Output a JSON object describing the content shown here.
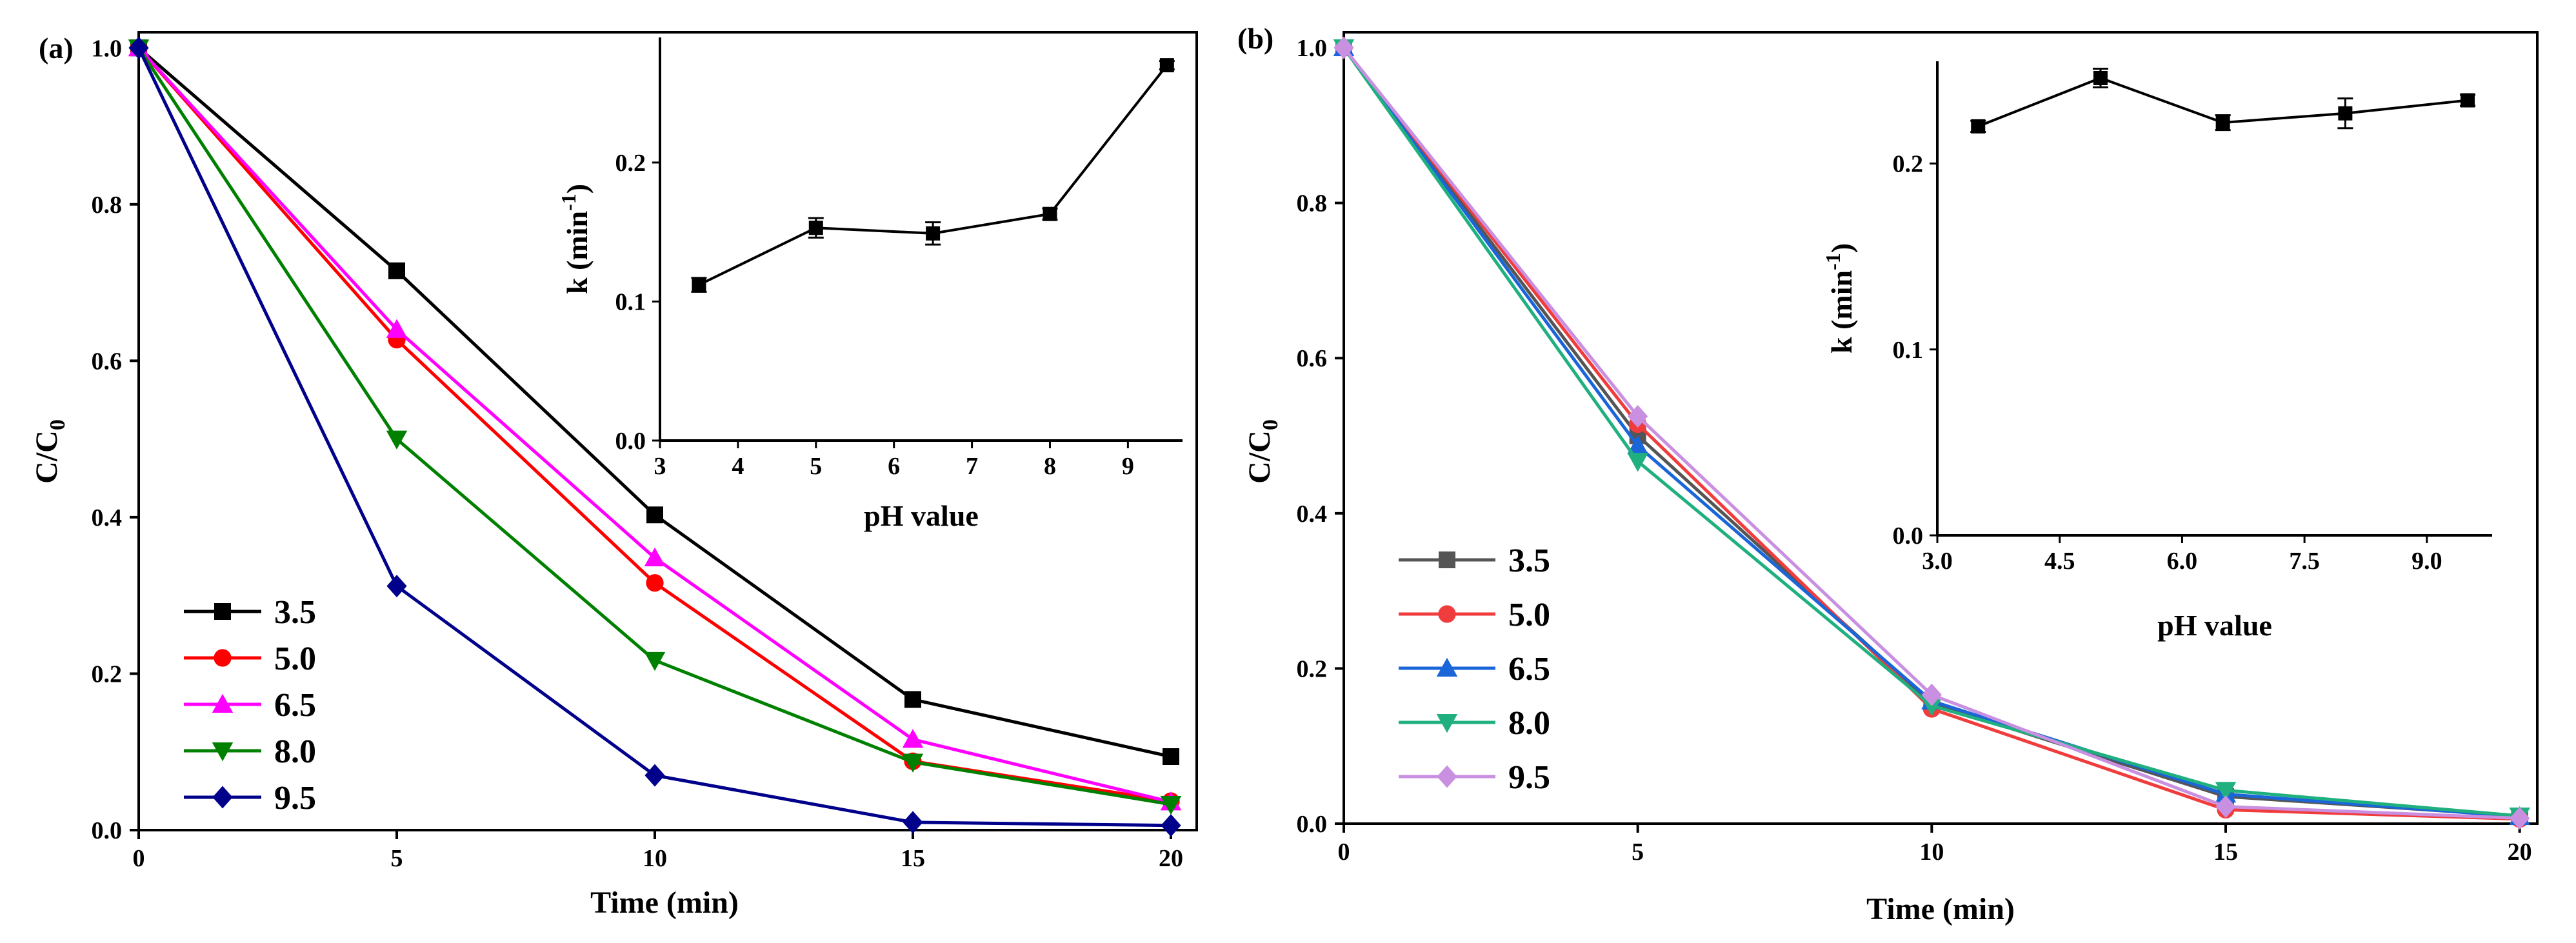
{
  "figure": {
    "chart_data": [
      {
        "id": "a",
        "type": "line",
        "panel_label": "(a)",
        "xlabel": "Time (min)",
        "ylabel_main": "C/C",
        "ylabel_sub": "0",
        "xlim": [
          0,
          20.5
        ],
        "ylim": [
          0,
          1.02
        ],
        "xticks": [
          0,
          5,
          10,
          15,
          20
        ],
        "xtick_labels": [
          "0",
          "5",
          "10",
          "15",
          "20"
        ],
        "yticks": [
          0,
          0.2,
          0.4,
          0.6,
          0.8,
          1.0
        ],
        "ytick_labels": [
          "0.0",
          "0.2",
          "0.4",
          "0.6",
          "0.8",
          "1.0"
        ],
        "x": [
          0,
          5,
          10,
          15,
          20
        ],
        "legend_position": "bottom-left",
        "series": [
          {
            "name": "3.5",
            "color": "#000000",
            "marker": "square",
            "values": [
              1.0,
              0.715,
              0.403,
              0.167,
              0.094
            ]
          },
          {
            "name": "5.0",
            "color": "#ff0000",
            "marker": "circle",
            "values": [
              1.0,
              0.627,
              0.316,
              0.088,
              0.037
            ]
          },
          {
            "name": "6.5",
            "color": "#ff00ff",
            "marker": "triangle-up",
            "values": [
              1.0,
              0.64,
              0.348,
              0.116,
              0.036
            ]
          },
          {
            "name": "8.0",
            "color": "#008000",
            "marker": "triangle-down",
            "values": [
              1.0,
              0.5,
              0.217,
              0.087,
              0.033
            ]
          },
          {
            "name": "9.5",
            "color": "#00008b",
            "marker": "diamond",
            "values": [
              1.0,
              0.312,
              0.07,
              0.01,
              0.006
            ]
          }
        ],
        "inset": {
          "type": "line",
          "xlabel": "pH value",
          "ylabel_main": "k (min",
          "ylabel_sup": "-1",
          "ylabel_close": ")",
          "xlim": [
            3,
            9.7
          ],
          "ylim": [
            0,
            0.29
          ],
          "xticks": [
            3,
            4,
            5,
            6,
            7,
            8,
            9
          ],
          "xtick_labels": [
            "3",
            "4",
            "5",
            "6",
            "7",
            "8",
            "9"
          ],
          "yticks": [
            0,
            0.1,
            0.2
          ],
          "ytick_labels": [
            "0.0",
            "0.1",
            "0.2"
          ],
          "x": [
            3.5,
            5.0,
            6.5,
            8.0,
            9.5
          ],
          "values": [
            0.112,
            0.153,
            0.149,
            0.163,
            0.27
          ],
          "errors": [
            0.005,
            0.007,
            0.008,
            0.004,
            0.003
          ]
        }
      },
      {
        "id": "b",
        "type": "line",
        "panel_label": "(b)",
        "xlabel": "Time (min)",
        "ylabel_main": "C/C",
        "ylabel_sub": "0",
        "xlim": [
          0,
          20.3
        ],
        "ylim": [
          0,
          1.02
        ],
        "xticks": [
          0,
          5,
          10,
          15,
          20
        ],
        "xtick_labels": [
          "0",
          "5",
          "10",
          "15",
          "20"
        ],
        "yticks": [
          0,
          0.2,
          0.4,
          0.6,
          0.8,
          1.0
        ],
        "ytick_labels": [
          "0.0",
          "0.2",
          "0.4",
          "0.6",
          "0.8",
          "1.0"
        ],
        "x": [
          0,
          5,
          10,
          15,
          20
        ],
        "legend_position": "bottom-left",
        "series": [
          {
            "name": "3.5",
            "color": "#555555",
            "marker": "square",
            "values": [
              1.0,
              0.5,
              0.155,
              0.035,
              0.01
            ]
          },
          {
            "name": "5.0",
            "color": "#f03c3c",
            "marker": "circle",
            "values": [
              1.0,
              0.515,
              0.148,
              0.018,
              0.006
            ]
          },
          {
            "name": "6.5",
            "color": "#1a66d9",
            "marker": "triangle-up",
            "values": [
              1.0,
              0.487,
              0.158,
              0.038,
              0.009
            ]
          },
          {
            "name": "8.0",
            "color": "#20b080",
            "marker": "triangle-down",
            "values": [
              1.0,
              0.467,
              0.152,
              0.043,
              0.01
            ]
          },
          {
            "name": "9.5",
            "color": "#c98fe0",
            "marker": "diamond",
            "values": [
              1.0,
              0.525,
              0.166,
              0.022,
              0.007
            ]
          }
        ],
        "inset": {
          "type": "line",
          "xlabel": "pH value",
          "ylabel_main": "k (min",
          "ylabel_sup": "-1",
          "ylabel_close": ")",
          "xlim": [
            3.0,
            9.8
          ],
          "ylim": [
            0,
            0.255
          ],
          "xticks": [
            3.0,
            4.5,
            6.0,
            7.5,
            9.0
          ],
          "xtick_labels": [
            "3.0",
            "4.5",
            "6.0",
            "7.5",
            "9.0"
          ],
          "yticks": [
            0,
            0.1,
            0.2
          ],
          "ytick_labels": [
            "0.0",
            "0.1",
            "0.2"
          ],
          "x": [
            3.5,
            5.0,
            6.5,
            8.0,
            9.5
          ],
          "values": [
            0.22,
            0.246,
            0.222,
            0.227,
            0.234
          ],
          "errors": [
            0.003,
            0.005,
            0.004,
            0.008,
            0.003
          ]
        }
      }
    ]
  }
}
